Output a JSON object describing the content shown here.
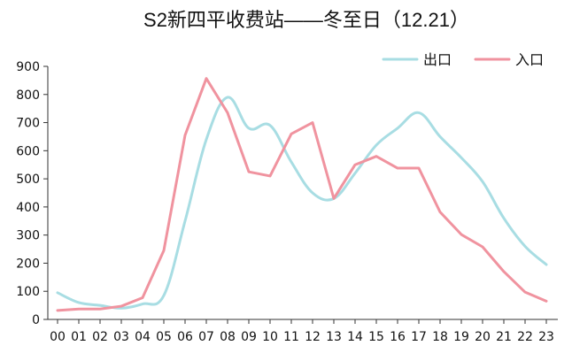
{
  "chart_data": {
    "type": "line",
    "title": "S2新四平收费站——冬至日（12.21）",
    "xlabel": "",
    "ylabel": "",
    "ylim": [
      0,
      900
    ],
    "yticks": [
      0,
      100,
      200,
      300,
      400,
      500,
      600,
      700,
      800,
      900
    ],
    "categories": [
      "00",
      "01",
      "02",
      "03",
      "04",
      "05",
      "06",
      "07",
      "08",
      "09",
      "10",
      "11",
      "12",
      "13",
      "14",
      "15",
      "16",
      "17",
      "18",
      "19",
      "20",
      "21",
      "22",
      "23"
    ],
    "grid": false,
    "legend_position": "top-right",
    "series": [
      {
        "name": "出口",
        "color": "#a8dde3",
        "smooth": true,
        "values": [
          95,
          60,
          50,
          40,
          55,
          85,
          350,
          640,
          790,
          680,
          690,
          560,
          450,
          430,
          520,
          620,
          680,
          735,
          650,
          575,
          490,
          360,
          260,
          195
        ]
      },
      {
        "name": "入口",
        "color": "#f0939f",
        "smooth": false,
        "values": [
          32,
          37,
          37,
          47,
          77,
          245,
          655,
          857,
          735,
          525,
          510,
          660,
          700,
          430,
          550,
          580,
          538,
          538,
          382,
          302,
          258,
          170,
          97,
          65
        ]
      }
    ]
  }
}
